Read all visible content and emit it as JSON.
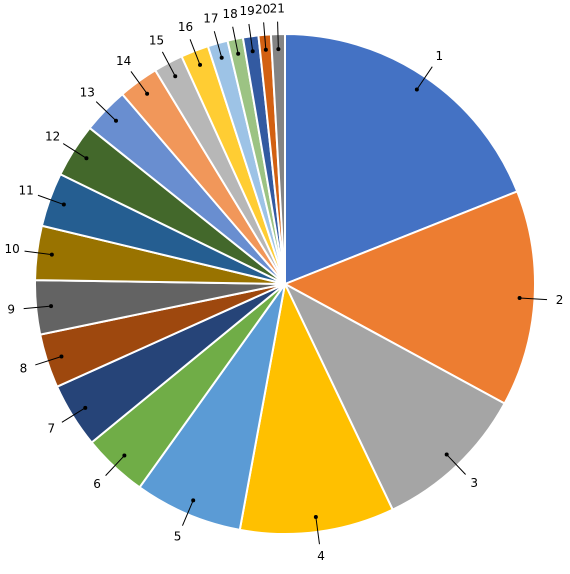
{
  "chart_data": {
    "type": "pie",
    "categories": [
      "1",
      "2",
      "3",
      "4",
      "5",
      "6",
      "7",
      "8",
      "9",
      "10",
      "11",
      "12",
      "13",
      "14",
      "15",
      "16",
      "17",
      "18",
      "19",
      "20",
      "21"
    ],
    "values": [
      19,
      14,
      10,
      10,
      7,
      4.2,
      4.2,
      3.5,
      3.5,
      3.5,
      3.5,
      3.5,
      3,
      2.6,
      1.9,
      1.8,
      1.3,
      1.0,
      1.0,
      0.8,
      0.9
    ],
    "colors": [
      "#4472c4",
      "#ed7d31",
      "#a5a5a5",
      "#ffc000",
      "#5b9bd5",
      "#70ad47",
      "#264478",
      "#9e480e",
      "#636363",
      "#997300",
      "#255e91",
      "#43682b",
      "#698ed0",
      "#f1975a",
      "#b7b7b7",
      "#ffcd33",
      "#9dc3e6",
      "#9cc383",
      "#335aa1",
      "#d26012",
      "#848484"
    ]
  }
}
